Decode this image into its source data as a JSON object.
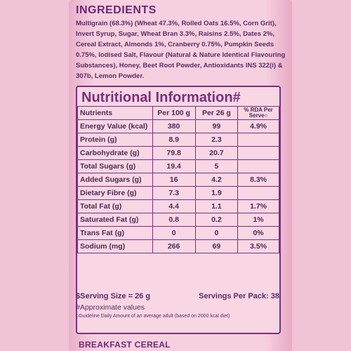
{
  "ingredients": {
    "title": "INGREDIENTS",
    "text": "Multigrain (68.3%) (Wheat 47.3%, Rolled Oats 16.5%, Corn Grit), Invert Syrup, Sugar, Wheat Bran 3.3%, Raisins 2.5%, Dates 2%, Cereal Extract, Almonds 1%, Cranberry 0.75%, Pumpkin Seeds 0.75%, Iodised Salt, Flavour (Natural & Nature Identical Flavouring Substances), Honey, Beet Root Powder, Antioxidants INS 322(i) & 307b, Lemon Powder."
  },
  "nutrition": {
    "title": "Nutritional Information#",
    "headers": [
      "Nutrients",
      "Per 100 g",
      "Per 26 g",
      "% RDA Per Serve○"
    ],
    "rows": [
      {
        "name": "Energy Value (kcal)",
        "per100": "380",
        "per26": "99",
        "rda": "4.9%"
      },
      {
        "name": "Protein (g)",
        "per100": "8.9",
        "per26": "2.3",
        "rda": ""
      },
      {
        "name": "Carbohydrate (g)",
        "per100": "79.8",
        "per26": "20.7",
        "rda": ""
      },
      {
        "name": "Total Sugars (g)",
        "per100": "19.4",
        "per26": "5",
        "rda": ""
      },
      {
        "name": "Added Sugars (g)",
        "per100": "16",
        "per26": "4.2",
        "rda": "8.3%"
      },
      {
        "name": "Dietary Fibre (g)",
        "per100": "7.3",
        "per26": "1.9",
        "rda": ""
      },
      {
        "name": "Total Fat (g)",
        "per100": "4.4",
        "per26": "1.1",
        "rda": "1.7%"
      },
      {
        "name": "Saturated Fat (g)",
        "per100": "0.8",
        "per26": "0.2",
        "rda": "1%"
      },
      {
        "name": "Trans Fat (g)",
        "per100": "0",
        "per26": "0",
        "rda": "0%"
      },
      {
        "name": "Sodium (mg)",
        "per100": "266",
        "per26": "69",
        "rda": "3.5%"
      }
    ]
  },
  "footer": {
    "serving_size": "$Serving Size = 26 g",
    "servings_per_pack": "Servings Per Pack: 38",
    "approx": "#Approximate values",
    "guideline": "○Guideline Daily Amount of an average adult (based on 2000 kcal diet)"
  },
  "product": "BREAKFAST CEREAL"
}
